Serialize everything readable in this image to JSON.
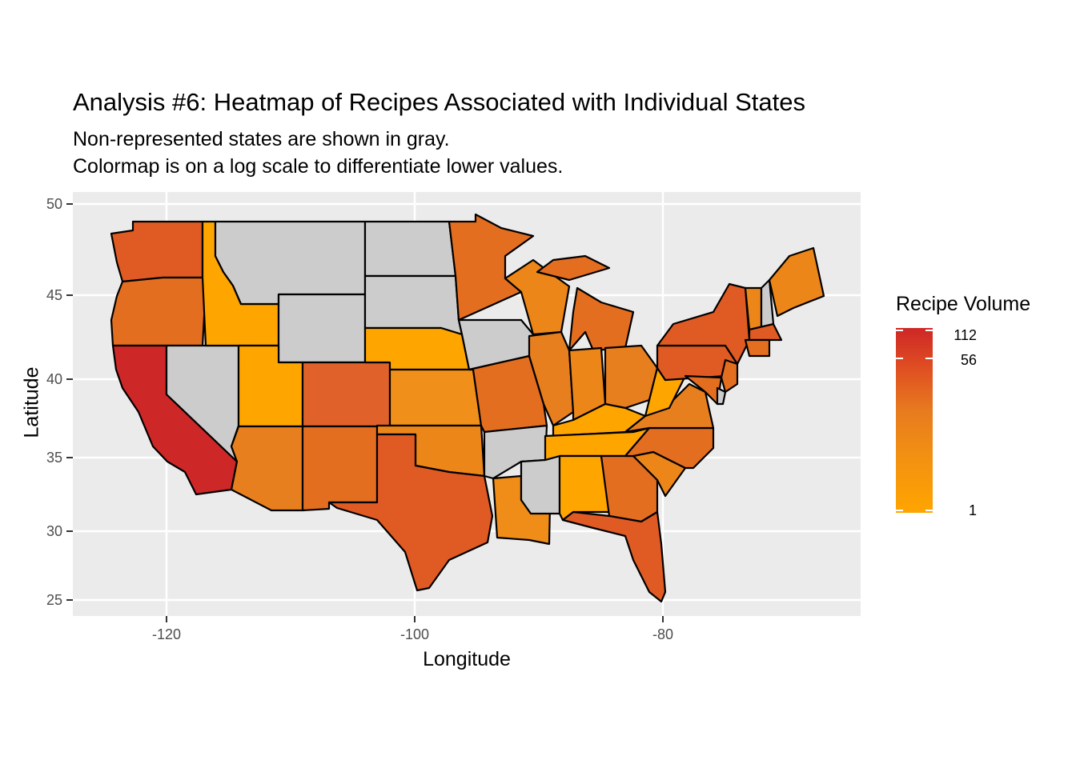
{
  "title": "Analysis #6: Heatmap of Recipes Associated with Individual States",
  "subtitle_line1": "Non-represented states are shown in gray.",
  "subtitle_line2": "Colormap is on a log scale to differentiate lower values.",
  "xlabel": "Longitude",
  "ylabel": "Latitude",
  "x_ticks": [
    "-120",
    "-100",
    "-80"
  ],
  "y_ticks": [
    "50",
    "45",
    "40",
    "35",
    "30",
    "25"
  ],
  "legend": {
    "title": "Recipe Volume",
    "ticks": [
      "112",
      "56",
      "1"
    ],
    "scale": "log",
    "low_color": "#ffa500",
    "high_color": "#ce2727",
    "missing_color": "#cccccc"
  },
  "chart_data": {
    "type": "heatmap",
    "map": "US states (choropleth)",
    "xlim": [
      -127,
      -66
    ],
    "ylim": [
      24.5,
      50.5
    ],
    "grid": true,
    "legend_position": "right",
    "not_represented_states": [
      "Montana",
      "Wyoming",
      "North Dakota",
      "South Dakota",
      "Nevada",
      "Iowa",
      "Arkansas",
      "Mississippi",
      "New Hampshire",
      "Delaware"
    ]
  }
}
